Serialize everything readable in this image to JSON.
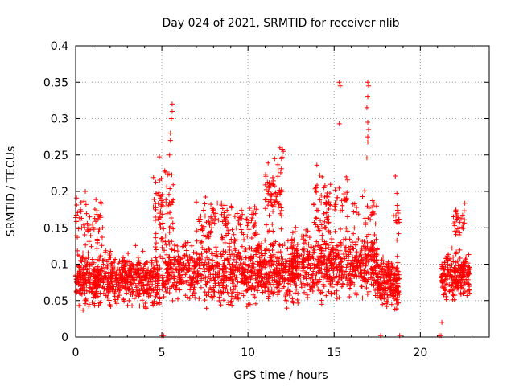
{
  "chart_data": {
    "type": "scatter",
    "title": "Day 024 of 2021, SRMTID for receiver nlib",
    "xlabel": "GPS time / hours",
    "ylabel": "SRMTID / TECUs",
    "xlim": [
      0,
      24
    ],
    "ylim": [
      0,
      0.4
    ],
    "xticks": [
      0,
      5,
      10,
      15,
      20
    ],
    "xtick_labels": [
      "0",
      "5",
      "10",
      "15",
      "20"
    ],
    "yticks": [
      0,
      0.05,
      0.1,
      0.15,
      0.2,
      0.25,
      0.3,
      0.35,
      0.4
    ],
    "ytick_labels": [
      "0",
      "0.05",
      "0.1",
      "0.15",
      "0.2",
      "0.25",
      "0.3",
      "0.35",
      "0.4"
    ],
    "grid": true,
    "marker": "+",
    "color": "#ff0000",
    "series": [
      {
        "name": "SRMTID",
        "clusters": [
          {
            "x0": 0.0,
            "x1": 4.9,
            "y_lo": 0.03,
            "y_hi": 0.13,
            "n": 650
          },
          {
            "x0": 0.0,
            "x1": 1.6,
            "y_lo": 0.1,
            "y_hi": 0.21,
            "n": 60
          },
          {
            "x0": 4.5,
            "x1": 5.7,
            "y_lo": 0.1,
            "y_hi": 0.26,
            "n": 70
          },
          {
            "x0": 5.0,
            "x1": 12.9,
            "y_lo": 0.03,
            "y_hi": 0.15,
            "n": 900
          },
          {
            "x0": 7.0,
            "x1": 10.5,
            "y_lo": 0.12,
            "y_hi": 0.2,
            "n": 110
          },
          {
            "x0": 11.0,
            "x1": 12.0,
            "y_lo": 0.13,
            "y_hi": 0.26,
            "n": 70
          },
          {
            "x0": 12.5,
            "x1": 17.5,
            "y_lo": 0.04,
            "y_hi": 0.16,
            "n": 600
          },
          {
            "x0": 13.8,
            "x1": 14.8,
            "y_lo": 0.12,
            "y_hi": 0.24,
            "n": 55
          },
          {
            "x0": 15.0,
            "x1": 17.5,
            "y_lo": 0.14,
            "y_hi": 0.22,
            "n": 50
          },
          {
            "x0": 17.5,
            "x1": 18.8,
            "y_lo": 0.03,
            "y_hi": 0.12,
            "n": 200
          },
          {
            "x0": 18.4,
            "x1": 18.8,
            "y_lo": 0.12,
            "y_hi": 0.22,
            "n": 15
          },
          {
            "x0": 21.2,
            "x1": 22.9,
            "y_lo": 0.04,
            "y_hi": 0.13,
            "n": 230
          },
          {
            "x0": 21.9,
            "x1": 22.6,
            "y_lo": 0.13,
            "y_hi": 0.19,
            "n": 30
          }
        ],
        "points": [
          {
            "x": 5.6,
            "y": 0.32
          },
          {
            "x": 5.6,
            "y": 0.31
          },
          {
            "x": 5.55,
            "y": 0.3
          },
          {
            "x": 5.5,
            "y": 0.28
          },
          {
            "x": 5.5,
            "y": 0.27
          },
          {
            "x": 5.45,
            "y": 0.25
          },
          {
            "x": 15.3,
            "y": 0.35
          },
          {
            "x": 15.35,
            "y": 0.345
          },
          {
            "x": 15.3,
            "y": 0.293
          },
          {
            "x": 16.95,
            "y": 0.35
          },
          {
            "x": 17.0,
            "y": 0.345
          },
          {
            "x": 16.95,
            "y": 0.33
          },
          {
            "x": 16.9,
            "y": 0.315
          },
          {
            "x": 16.95,
            "y": 0.295
          },
          {
            "x": 17.0,
            "y": 0.285
          },
          {
            "x": 16.95,
            "y": 0.275
          },
          {
            "x": 16.95,
            "y": 0.268
          },
          {
            "x": 16.9,
            "y": 0.246
          },
          {
            "x": 12.0,
            "y": 0.258
          },
          {
            "x": 12.05,
            "y": 0.255
          },
          {
            "x": 11.85,
            "y": 0.26
          },
          {
            "x": 14.0,
            "y": 0.236
          },
          {
            "x": 14.3,
            "y": 0.22
          },
          {
            "x": 15.7,
            "y": 0.22
          },
          {
            "x": 18.55,
            "y": 0.221
          },
          {
            "x": 21.25,
            "y": 0.02
          },
          {
            "x": 5.0,
            "y": 0.002
          },
          {
            "x": 5.1,
            "y": 0.002
          },
          {
            "x": 17.7,
            "y": 0.002
          },
          {
            "x": 18.8,
            "y": 0.002
          },
          {
            "x": 21.1,
            "y": 0.002
          },
          {
            "x": 21.2,
            "y": 0.002
          }
        ]
      }
    ]
  }
}
